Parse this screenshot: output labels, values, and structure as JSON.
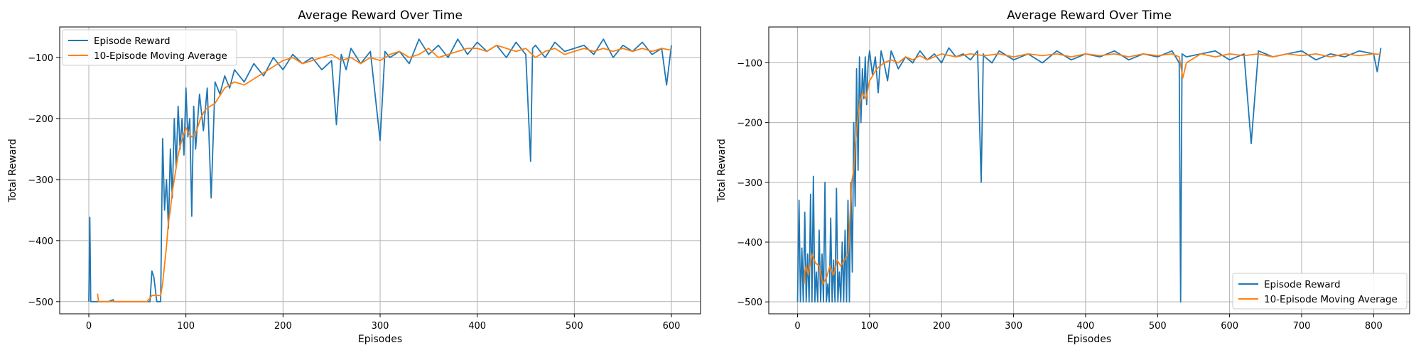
{
  "chart_data": [
    {
      "type": "line",
      "title": "Average Reward Over Time",
      "xlabel": "Episodes",
      "ylabel": "Total Reward",
      "xlim": [
        -30,
        630
      ],
      "ylim": [
        -520,
        -50
      ],
      "xticks": [
        0,
        100,
        200,
        300,
        400,
        500,
        600
      ],
      "yticks": [
        -500,
        -400,
        -300,
        -200,
        -100
      ],
      "grid": true,
      "legend_position": "top-left",
      "series": [
        {
          "name": "Episode Reward",
          "color": "#1f77b4",
          "x": [
            0,
            1,
            2,
            5,
            10,
            20,
            25,
            26,
            30,
            40,
            50,
            60,
            63,
            65,
            67,
            70,
            74,
            76,
            78,
            80,
            82,
            84,
            86,
            88,
            90,
            92,
            94,
            96,
            98,
            100,
            102,
            104,
            106,
            108,
            110,
            114,
            118,
            122,
            126,
            130,
            135,
            140,
            145,
            150,
            160,
            170,
            180,
            190,
            200,
            210,
            220,
            230,
            240,
            250,
            255,
            260,
            265,
            270,
            280,
            290,
            300,
            305,
            310,
            320,
            330,
            340,
            350,
            360,
            370,
            380,
            390,
            400,
            410,
            420,
            430,
            440,
            450,
            455,
            457,
            460,
            470,
            480,
            490,
            500,
            510,
            520,
            530,
            540,
            550,
            560,
            570,
            580,
            590,
            595,
            600
          ],
          "y": [
            -500,
            -362,
            -500,
            -500,
            -500,
            -500,
            -497,
            -500,
            -500,
            -500,
            -500,
            -500,
            -500,
            -450,
            -460,
            -500,
            -500,
            -233,
            -350,
            -300,
            -380,
            -250,
            -330,
            -200,
            -280,
            -180,
            -250,
            -200,
            -260,
            -150,
            -230,
            -200,
            -360,
            -180,
            -250,
            -160,
            -220,
            -150,
            -330,
            -140,
            -160,
            -130,
            -150,
            -120,
            -140,
            -110,
            -130,
            -100,
            -120,
            -95,
            -110,
            -100,
            -120,
            -105,
            -210,
            -95,
            -120,
            -85,
            -110,
            -90,
            -236,
            -90,
            -100,
            -90,
            -110,
            -70,
            -95,
            -80,
            -100,
            -70,
            -95,
            -75,
            -90,
            -80,
            -100,
            -75,
            -95,
            -270,
            -85,
            -80,
            -100,
            -75,
            -90,
            -85,
            -80,
            -95,
            -70,
            -100,
            -80,
            -90,
            -75,
            -95,
            -85,
            -145,
            -80
          ]
        },
        {
          "name": "10-Episode Moving Average",
          "color": "#ff7f0e",
          "x": [
            9,
            10,
            11,
            15,
            20,
            30,
            40,
            50,
            60,
            65,
            70,
            74,
            76,
            78,
            80,
            82,
            84,
            86,
            88,
            90,
            92,
            95,
            98,
            100,
            103,
            106,
            110,
            115,
            120,
            125,
            130,
            140,
            150,
            160,
            170,
            180,
            190,
            200,
            210,
            220,
            230,
            240,
            250,
            260,
            270,
            280,
            290,
            300,
            310,
            320,
            330,
            340,
            350,
            360,
            370,
            380,
            390,
            400,
            410,
            420,
            430,
            440,
            450,
            460,
            470,
            480,
            490,
            500,
            510,
            520,
            530,
            540,
            550,
            560,
            570,
            580,
            590,
            600
          ],
          "y": [
            -487,
            -500,
            -500,
            -500,
            -500,
            -500,
            -500,
            -500,
            -500,
            -490,
            -490,
            -490,
            -470,
            -440,
            -410,
            -370,
            -350,
            -320,
            -300,
            -280,
            -260,
            -240,
            -225,
            -215,
            -225,
            -230,
            -225,
            -200,
            -185,
            -180,
            -175,
            -150,
            -140,
            -145,
            -135,
            -125,
            -115,
            -105,
            -100,
            -110,
            -105,
            -100,
            -95,
            -105,
            -100,
            -110,
            -100,
            -105,
            -95,
            -90,
            -100,
            -95,
            -85,
            -100,
            -95,
            -90,
            -85,
            -85,
            -90,
            -80,
            -85,
            -90,
            -85,
            -100,
            -90,
            -85,
            -95,
            -90,
            -85,
            -90,
            -85,
            -90,
            -85,
            -90,
            -85,
            -90,
            -85,
            -88
          ]
        }
      ]
    },
    {
      "type": "line",
      "title": "Average Reward Over Time",
      "xlabel": "Episodes",
      "ylabel": "Total Reward",
      "xlim": [
        -40,
        850
      ],
      "ylim": [
        -520,
        -40
      ],
      "xticks": [
        0,
        100,
        200,
        300,
        400,
        500,
        600,
        700,
        800
      ],
      "yticks": [
        -500,
        -400,
        -300,
        -200,
        -100
      ],
      "grid": true,
      "legend_position": "bottom-right",
      "series": [
        {
          "name": "Episode Reward",
          "color": "#1f77b4",
          "x": [
            0,
            2,
            4,
            6,
            8,
            10,
            12,
            14,
            16,
            18,
            20,
            22,
            24,
            26,
            28,
            30,
            32,
            34,
            36,
            38,
            40,
            42,
            44,
            46,
            48,
            50,
            52,
            54,
            56,
            58,
            60,
            62,
            64,
            66,
            68,
            70,
            72,
            74,
            76,
            78,
            80,
            82,
            84,
            86,
            88,
            90,
            92,
            94,
            96,
            98,
            100,
            104,
            108,
            112,
            116,
            120,
            125,
            130,
            140,
            150,
            160,
            170,
            180,
            190,
            200,
            210,
            220,
            230,
            240,
            250,
            255,
            258,
            260,
            270,
            280,
            300,
            320,
            340,
            360,
            380,
            400,
            420,
            440,
            460,
            480,
            500,
            520,
            530,
            532,
            534,
            540,
            560,
            580,
            600,
            620,
            630,
            640,
            660,
            680,
            700,
            720,
            740,
            760,
            780,
            800,
            805,
            810
          ],
          "y": [
            -500,
            -330,
            -500,
            -410,
            -500,
            -350,
            -500,
            -420,
            -500,
            -320,
            -500,
            -290,
            -500,
            -450,
            -500,
            -380,
            -500,
            -420,
            -500,
            -300,
            -500,
            -470,
            -500,
            -360,
            -500,
            -430,
            -500,
            -310,
            -500,
            -450,
            -500,
            -400,
            -500,
            -380,
            -500,
            -330,
            -500,
            -300,
            -450,
            -200,
            -340,
            -110,
            -280,
            -90,
            -200,
            -110,
            -160,
            -90,
            -170,
            -100,
            -80,
            -120,
            -90,
            -150,
            -80,
            -100,
            -130,
            -80,
            -110,
            -90,
            -100,
            -80,
            -95,
            -85,
            -100,
            -75,
            -90,
            -85,
            -95,
            -80,
            -300,
            -85,
            -90,
            -100,
            -80,
            -95,
            -85,
            -100,
            -80,
            -95,
            -85,
            -90,
            -80,
            -95,
            -85,
            -90,
            -80,
            -100,
            -500,
            -85,
            -90,
            -85,
            -80,
            -95,
            -85,
            -235,
            -80,
            -90,
            -85,
            -80,
            -95,
            -85,
            -90,
            -80,
            -85,
            -115,
            -75
          ]
        },
        {
          "name": "10-Episode Moving Average",
          "color": "#ff7f0e",
          "x": [
            9,
            10,
            12,
            15,
            20,
            25,
            30,
            35,
            40,
            45,
            50,
            55,
            60,
            65,
            70,
            72,
            75,
            78,
            80,
            83,
            86,
            90,
            95,
            100,
            105,
            110,
            120,
            130,
            140,
            150,
            160,
            170,
            180,
            190,
            200,
            220,
            240,
            260,
            280,
            300,
            320,
            340,
            360,
            380,
            400,
            420,
            440,
            460,
            480,
            500,
            520,
            530,
            535,
            540,
            560,
            580,
            600,
            620,
            640,
            660,
            680,
            700,
            720,
            740,
            760,
            780,
            800,
            810
          ],
          "y": [
            -470,
            -450,
            -440,
            -455,
            -420,
            -435,
            -440,
            -470,
            -460,
            -440,
            -455,
            -430,
            -440,
            -430,
            -420,
            -380,
            -300,
            -280,
            -240,
            -200,
            -170,
            -150,
            -160,
            -130,
            -120,
            -110,
            -100,
            -95,
            -100,
            -90,
            -95,
            -88,
            -95,
            -90,
            -85,
            -90,
            -85,
            -88,
            -85,
            -90,
            -85,
            -88,
            -85,
            -90,
            -85,
            -88,
            -85,
            -90,
            -85,
            -88,
            -85,
            -90,
            -125,
            -100,
            -85,
            -90,
            -85,
            -88,
            -85,
            -90,
            -85,
            -88,
            -85,
            -90,
            -85,
            -88,
            -85,
            -86
          ]
        }
      ]
    }
  ]
}
